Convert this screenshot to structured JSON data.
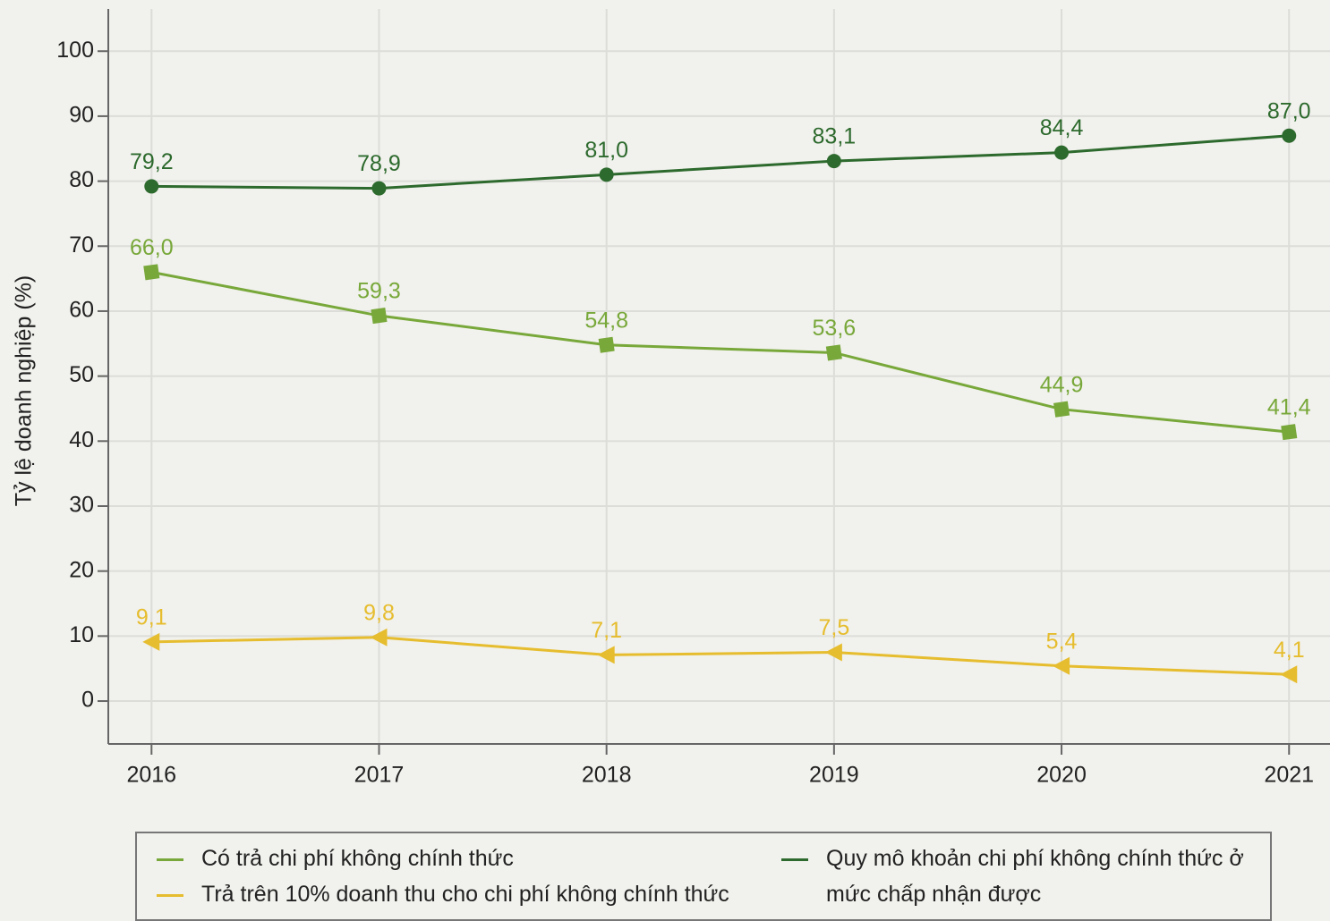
{
  "chart_data": {
    "type": "line",
    "y_label": "Tỷ lệ doanh nghiệp (%)",
    "x": [
      2016,
      2017,
      2018,
      2019,
      2020,
      2021
    ],
    "xlim": [
      2015.81,
      2021.18
    ],
    "xticks": [
      2016,
      2017,
      2018,
      2019,
      2020,
      2021
    ],
    "ylim": [
      -6.6,
      106.5
    ],
    "yticks": [
      0,
      10,
      20,
      30,
      40,
      50,
      60,
      70,
      80,
      90,
      100
    ],
    "grid": true,
    "series": [
      {
        "name": "Có trả chi phí không chính thức",
        "color": "#78a83a",
        "marker": "square",
        "values": [
          66.0,
          59.3,
          54.8,
          53.6,
          44.9,
          41.4
        ],
        "value_labels": [
          "66,0",
          "59,3",
          "54,8",
          "53,6",
          "44,9",
          "41,4"
        ]
      },
      {
        "name": "Trả trên 10% doanh thu cho chi phí không chính thức",
        "color": "#e6bd2e",
        "marker": "triangle-left",
        "values": [
          9.1,
          9.8,
          7.1,
          7.5,
          5.4,
          4.1
        ],
        "value_labels": [
          "9,1",
          "9,8",
          "7,1",
          "7,5",
          "5,4",
          "4,1"
        ]
      },
      {
        "name": "Quy mô khoản chi phí không chính thức ở mức chấp nhận được",
        "color": "#2d6a2d",
        "marker": "circle",
        "values": [
          79.2,
          78.9,
          81.0,
          83.1,
          84.4,
          87.0
        ],
        "value_labels": [
          "79,2",
          "78,9",
          "81,0",
          "83,1",
          "84,4",
          "87,0"
        ]
      }
    ]
  }
}
